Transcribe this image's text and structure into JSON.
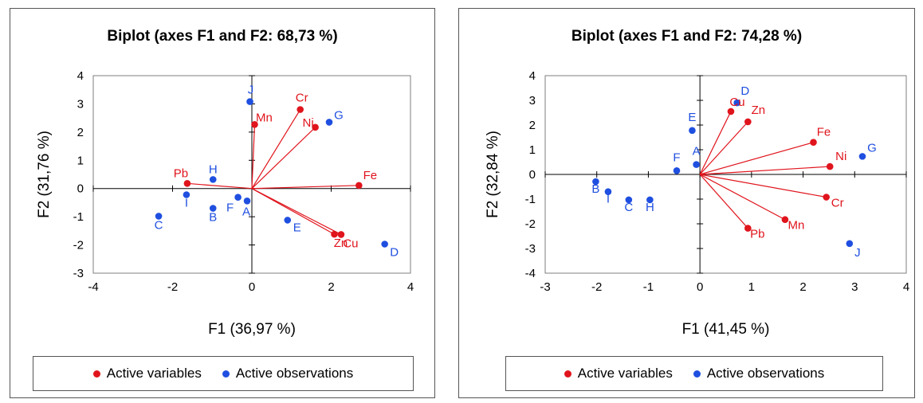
{
  "chart_data": [
    {
      "type": "scatter",
      "title": "Biplot (axes F1 and F2: 68,73 %)",
      "xlabel": "F1 (36,97 %)",
      "ylabel": "F2 (31,76 %)",
      "xlim": [
        -4,
        4
      ],
      "ylim": [
        -3,
        4
      ],
      "xticks": [
        "-4",
        "-2",
        "0",
        "2",
        "4"
      ],
      "yticks": [
        "-3",
        "-2",
        "-1",
        "0",
        "1",
        "2",
        "3",
        "4"
      ],
      "legend": [
        "Active variables",
        "Active observations"
      ],
      "legend_position": "bottom",
      "colors": {
        "variables": "#e0141c",
        "observations": "#1f4fe0"
      },
      "variables": [
        {
          "label": "Cr",
          "x": 1.22,
          "y": 2.8
        },
        {
          "label": "Ni",
          "x": 1.6,
          "y": 2.17
        },
        {
          "label": "Mn",
          "x": 0.07,
          "y": 2.27
        },
        {
          "label": "Pb",
          "x": -1.63,
          "y": 0.18
        },
        {
          "label": "Fe",
          "x": 2.7,
          "y": 0.11
        },
        {
          "label": "Zn",
          "x": 2.08,
          "y": -1.62
        },
        {
          "label": "Cu",
          "x": 2.25,
          "y": -1.63
        }
      ],
      "observations": [
        {
          "label": "J",
          "x": -0.05,
          "y": 3.08
        },
        {
          "label": "G",
          "x": 1.95,
          "y": 2.35
        },
        {
          "label": "H",
          "x": -0.98,
          "y": 0.32
        },
        {
          "label": "I",
          "x": -1.65,
          "y": -0.22
        },
        {
          "label": "B",
          "x": -0.98,
          "y": -0.7
        },
        {
          "label": "C",
          "x": -2.35,
          "y": -0.98
        },
        {
          "label": "F",
          "x": -0.35,
          "y": -0.31
        },
        {
          "label": "A",
          "x": -0.12,
          "y": -0.44
        },
        {
          "label": "E",
          "x": 0.9,
          "y": -1.12
        },
        {
          "label": "D",
          "x": 3.35,
          "y": -1.97
        }
      ]
    },
    {
      "type": "scatter",
      "title": "Biplot (axes F1 and F2: 74,28 %)",
      "xlabel": "F1 (41,45 %)",
      "ylabel": "F2 (32,84 %)",
      "xlim": [
        -3,
        4
      ],
      "ylim": [
        -4,
        4
      ],
      "xticks": [
        "-3",
        "-2",
        "-1",
        "0",
        "1",
        "2",
        "3",
        "4"
      ],
      "yticks": [
        "-4",
        "-3",
        "-2",
        "-1",
        "0",
        "1",
        "2",
        "3",
        "4"
      ],
      "legend": [
        "Active variables",
        "Active observations"
      ],
      "legend_position": "bottom",
      "colors": {
        "variables": "#e0141c",
        "observations": "#1f4fe0"
      },
      "variables": [
        {
          "label": "Cu",
          "x": 0.6,
          "y": 2.55
        },
        {
          "label": "Zn",
          "x": 0.93,
          "y": 2.13
        },
        {
          "label": "Fe",
          "x": 2.2,
          "y": 1.3
        },
        {
          "label": "Ni",
          "x": 2.52,
          "y": 0.32
        },
        {
          "label": "Cr",
          "x": 2.45,
          "y": -0.92
        },
        {
          "label": "Mn",
          "x": 1.65,
          "y": -1.83
        },
        {
          "label": "Pb",
          "x": 0.93,
          "y": -2.18
        }
      ],
      "observations": [
        {
          "label": "D",
          "x": 0.72,
          "y": 2.9
        },
        {
          "label": "E",
          "x": -0.15,
          "y": 1.78
        },
        {
          "label": "F",
          "x": -0.45,
          "y": 0.15
        },
        {
          "label": "A",
          "x": -0.07,
          "y": 0.4
        },
        {
          "label": "G",
          "x": 3.15,
          "y": 0.73
        },
        {
          "label": "B",
          "x": -2.02,
          "y": -0.29
        },
        {
          "label": "I",
          "x": -1.78,
          "y": -0.7
        },
        {
          "label": "C",
          "x": -1.38,
          "y": -1.03
        },
        {
          "label": "H",
          "x": -0.97,
          "y": -1.03
        },
        {
          "label": "J",
          "x": 2.9,
          "y": -2.8
        }
      ]
    }
  ]
}
